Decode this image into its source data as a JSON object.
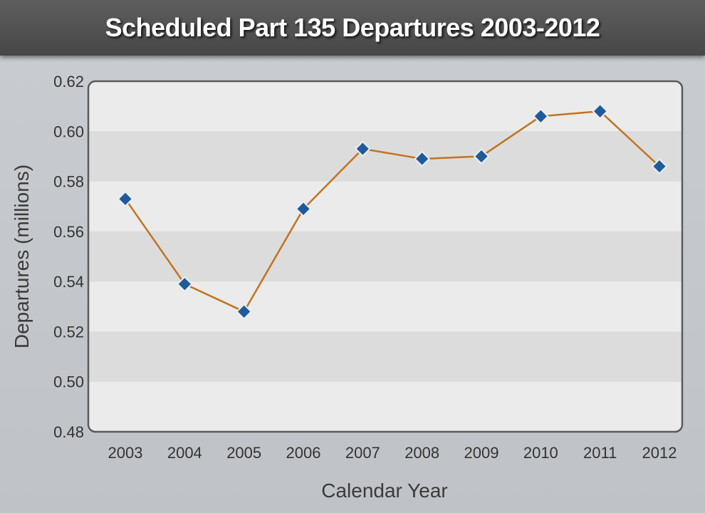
{
  "chart_data": {
    "type": "line",
    "title": "Scheduled Part 135 Departures  2003-2012",
    "xlabel": "Calendar Year",
    "ylabel": "Departures (millions)",
    "categories": [
      "2003",
      "2004",
      "2005",
      "2006",
      "2007",
      "2008",
      "2009",
      "2010",
      "2011",
      "2012"
    ],
    "series": [
      {
        "values": [
          0.573,
          0.539,
          0.528,
          0.569,
          0.593,
          0.589,
          0.59,
          0.606,
          0.608,
          0.586
        ]
      }
    ],
    "ylim": [
      0.48,
      0.62
    ],
    "yticks": [
      "0.48",
      "0.50",
      "0.52",
      "0.54",
      "0.56",
      "0.58",
      "0.60",
      "0.62"
    ],
    "grid": "alternating horizontal bands",
    "legend": "none",
    "colors": {
      "line": "#c0741e",
      "marker": "#1f5a9a",
      "marker_stroke": "#e8eef5",
      "band_dark": "#dcdcdc",
      "band_light": "#ebebeb"
    }
  }
}
